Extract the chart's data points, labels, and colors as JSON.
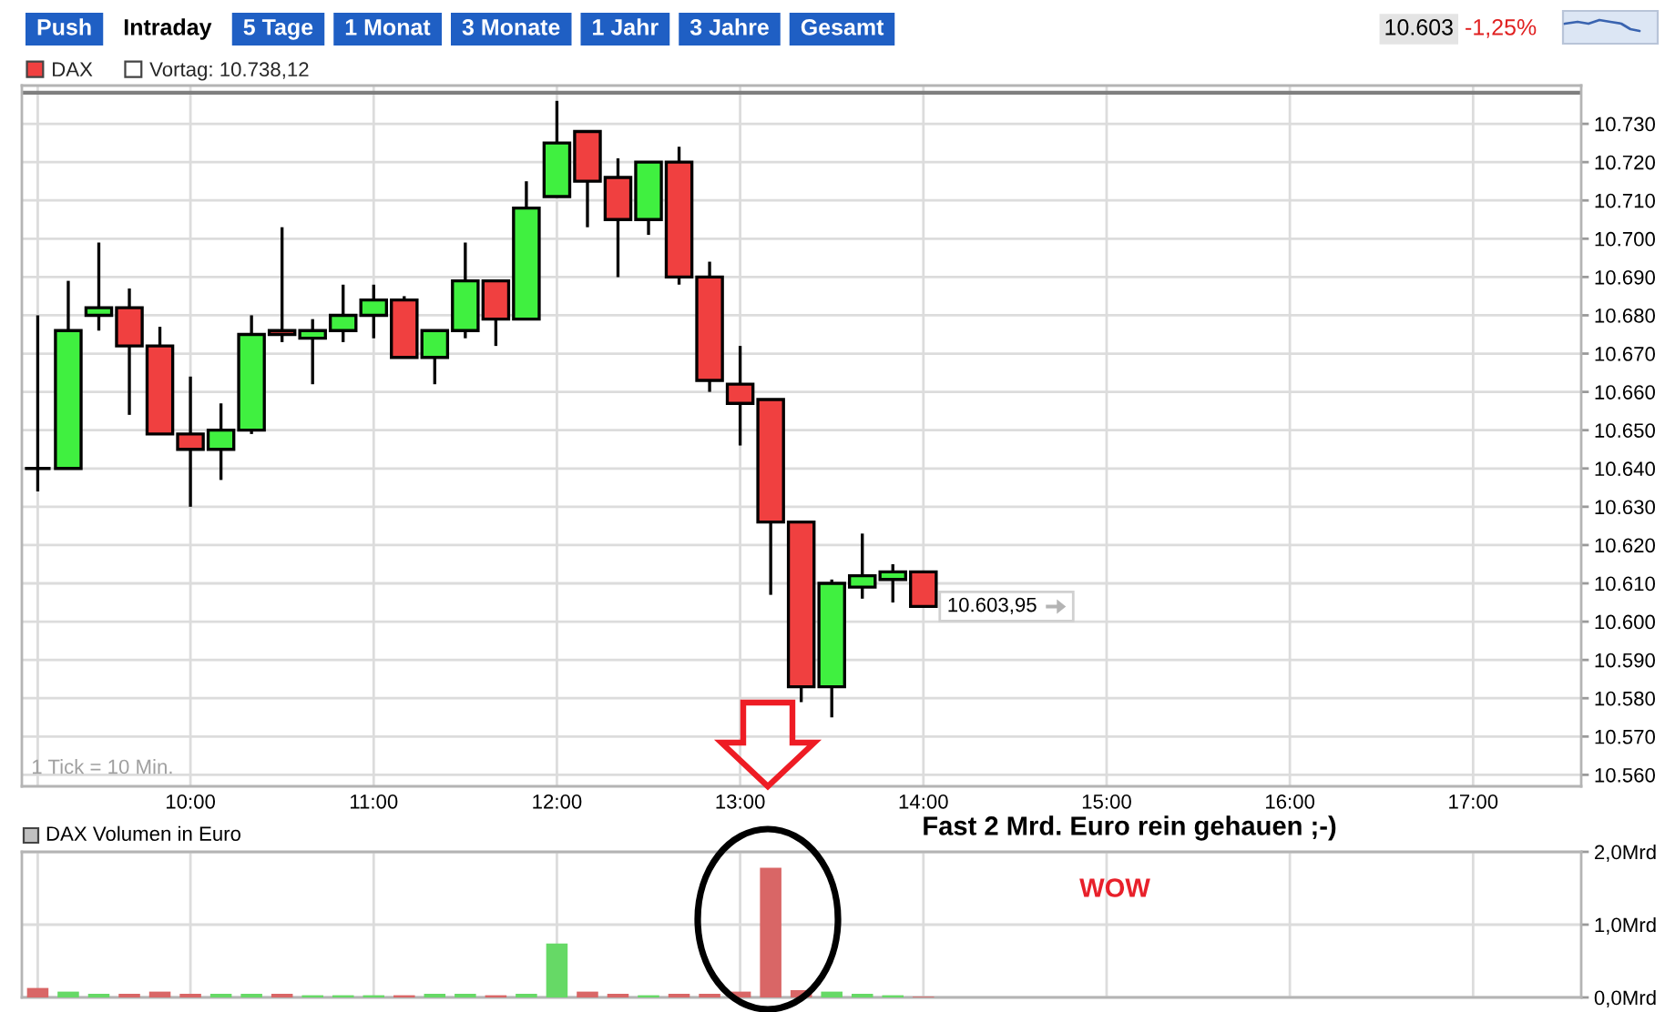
{
  "chart_data": [
    {
      "type": "other",
      "annotations": [
        "Push",
        "Intraday",
        "5 Tage",
        "1 Monat",
        "3 Monate",
        "1 Jahr",
        "3 Jahre",
        "Gesamt",
        "10.603",
        "-1,25%"
      ]
    },
    {
      "type": "candlestick",
      "x": [
        9.1667,
        9.3333,
        9.5,
        9.6667,
        9.8333,
        10,
        10.1667,
        10.3333,
        10.5,
        10.6667,
        10.8333,
        11,
        11.1667,
        11.3333,
        11.5,
        11.6667,
        11.8333,
        12,
        12.1667,
        12.3333,
        12.5,
        12.6667,
        12.8333,
        13,
        13.1667,
        13.3333,
        13.5,
        13.6667,
        13.8333,
        14
      ],
      "series": [
        {
          "name": "DAX",
          "color": "#f04040",
          "colors": [
            "#000000",
            "#40f040",
            "#40f040",
            "#f04040",
            "#f04040",
            "#f04040",
            "#40f040",
            "#40f040",
            "#f04040",
            "#40f040",
            "#40f040",
            "#40f040",
            "#f04040",
            "#40f040",
            "#40f040",
            "#f04040",
            "#40f040",
            "#40f040",
            "#f04040",
            "#f04040",
            "#40f040",
            "#f04040",
            "#f04040",
            "#f04040",
            "#f04040",
            "#f04040",
            "#40f040",
            "#40f040",
            "#40f040",
            "#f04040"
          ],
          "ohlc": [
            [
              10640,
              10680,
              10634,
              10640
            ],
            [
              10640,
              10689,
              10640,
              10676
            ],
            [
              10680,
              10699,
              10676,
              10682
            ],
            [
              10682,
              10687,
              10654,
              10672
            ],
            [
              10672,
              10677,
              10649,
              10649
            ],
            [
              10649,
              10664,
              10630,
              10645
            ],
            [
              10645,
              10657,
              10637,
              10650
            ],
            [
              10650,
              10680,
              10649,
              10675
            ],
            [
              10676,
              10703,
              10673,
              10675
            ],
            [
              10674,
              10679,
              10662,
              10676
            ],
            [
              10676,
              10688,
              10673,
              10680
            ],
            [
              10680,
              10688,
              10674,
              10684
            ],
            [
              10684,
              10685,
              10669,
              10669
            ],
            [
              10669,
              10676,
              10662,
              10676
            ],
            [
              10676,
              10699,
              10674,
              10689
            ],
            [
              10689,
              10689,
              10672,
              10679
            ],
            [
              10679,
              10715,
              10679,
              10708
            ],
            [
              10711,
              10736,
              10711,
              10725
            ],
            [
              10728,
              10728,
              10703,
              10715
            ],
            [
              10716,
              10721,
              10690,
              10705
            ],
            [
              10705,
              10720,
              10701,
              10720
            ],
            [
              10720,
              10724,
              10688,
              10690
            ],
            [
              10690,
              10694,
              10660,
              10663
            ],
            [
              10662,
              10672,
              10646,
              10657
            ],
            [
              10658,
              10658,
              10607,
              10626
            ],
            [
              10626,
              10626,
              10579,
              10583
            ],
            [
              10583,
              10611,
              10575,
              10610
            ],
            [
              10609,
              10623,
              10606,
              10612
            ],
            [
              10611,
              10615,
              10605,
              10613
            ],
            [
              10613,
              10613,
              10603.95,
              10603.95
            ]
          ]
        }
      ],
      "xlim": [
        9.08,
        17.59
      ],
      "xticks": [
        {
          "value": 9.1667,
          "label": null
        },
        {
          "value": 10,
          "label": "10:00"
        },
        {
          "value": 11,
          "label": "11:00"
        },
        {
          "value": 12,
          "label": "12:00"
        },
        {
          "value": 13,
          "label": "13:00"
        },
        {
          "value": 14,
          "label": "14:00"
        },
        {
          "value": 15,
          "label": "15:00"
        },
        {
          "value": 16,
          "label": "16:00"
        },
        {
          "value": 17,
          "label": "17:00"
        }
      ],
      "ylim": [
        10557,
        10740
      ],
      "yticks": [
        {
          "value": 10560,
          "label": "10.560"
        },
        {
          "value": 10570,
          "label": "10.570"
        },
        {
          "value": 10580,
          "label": "10.580"
        },
        {
          "value": 10590,
          "label": "10.590"
        },
        {
          "value": 10600,
          "label": "10.600"
        },
        {
          "value": 10610,
          "label": "10.610"
        },
        {
          "value": 10620,
          "label": "10.620"
        },
        {
          "value": 10630,
          "label": "10.630"
        },
        {
          "value": 10640,
          "label": "10.640"
        },
        {
          "value": 10650,
          "label": "10.650"
        },
        {
          "value": 10660,
          "label": "10.660"
        },
        {
          "value": 10670,
          "label": "10.670"
        },
        {
          "value": 10680,
          "label": "10.680"
        },
        {
          "value": 10690,
          "label": "10.690"
        },
        {
          "value": 10700,
          "label": "10.700"
        },
        {
          "value": 10710,
          "label": "10.710"
        },
        {
          "value": 10720,
          "label": "10.720"
        },
        {
          "value": 10730,
          "label": "10.730"
        }
      ],
      "grid": true,
      "legend": "top left",
      "ref_lines": [
        {
          "axis": "y",
          "value": 10738.12,
          "label": "Vortag: 10.738,12",
          "color": "#7f7f7f"
        }
      ],
      "annotations": [
        {
          "text": "10.603,95",
          "x": 14,
          "y": 10603.95
        },
        "1 Tick = 10 Min."
      ]
    },
    {
      "type": "bar",
      "title": "DAX Volumen in Euro",
      "x": [
        9.1667,
        9.3333,
        9.5,
        9.6667,
        9.8333,
        10,
        10.1667,
        10.3333,
        10.5,
        10.6667,
        10.8333,
        11,
        11.1667,
        11.3333,
        11.5,
        11.6667,
        11.8333,
        12,
        12.1667,
        12.3333,
        12.5,
        12.6667,
        12.8333,
        13,
        13.1667,
        13.3333,
        13.5,
        13.6667,
        13.8333,
        14
      ],
      "values": [
        0.13,
        0.08,
        0.05,
        0.05,
        0.08,
        0.05,
        0.05,
        0.05,
        0.05,
        0.03,
        0.03,
        0.03,
        0.03,
        0.05,
        0.05,
        0.03,
        0.05,
        0.74,
        0.08,
        0.05,
        0.03,
        0.05,
        0.05,
        0.08,
        1.78,
        0.1,
        0.08,
        0.05,
        0.03,
        0.01
      ],
      "colors": [
        "#d96666",
        "#66d966",
        "#66d966",
        "#d96666",
        "#d96666",
        "#d96666",
        "#66d966",
        "#66d966",
        "#d96666",
        "#66d966",
        "#66d966",
        "#66d966",
        "#d96666",
        "#66d966",
        "#66d966",
        "#d96666",
        "#66d966",
        "#66d966",
        "#d96666",
        "#d96666",
        "#66d966",
        "#d96666",
        "#d96666",
        "#d96666",
        "#d96666",
        "#d96666",
        "#66d966",
        "#66d966",
        "#66d966",
        "#d96666"
      ],
      "xlim": [
        9.08,
        17.59
      ],
      "xticks": [
        9.1667,
        10,
        11,
        12,
        13,
        14,
        15,
        16,
        17
      ],
      "ylim": [
        0,
        2
      ],
      "yticks": [
        {
          "value": 0,
          "label": "0,0Mrd"
        },
        {
          "value": 1,
          "label": "1,0Mrd"
        },
        {
          "value": 2,
          "label": "2,0Mrd"
        }
      ],
      "grid": true,
      "tick_labels": "y",
      "annotations": [
        "Fast 2 Mrd. Euro rein gehauen ;-)",
        "WOW"
      ]
    }
  ]
}
